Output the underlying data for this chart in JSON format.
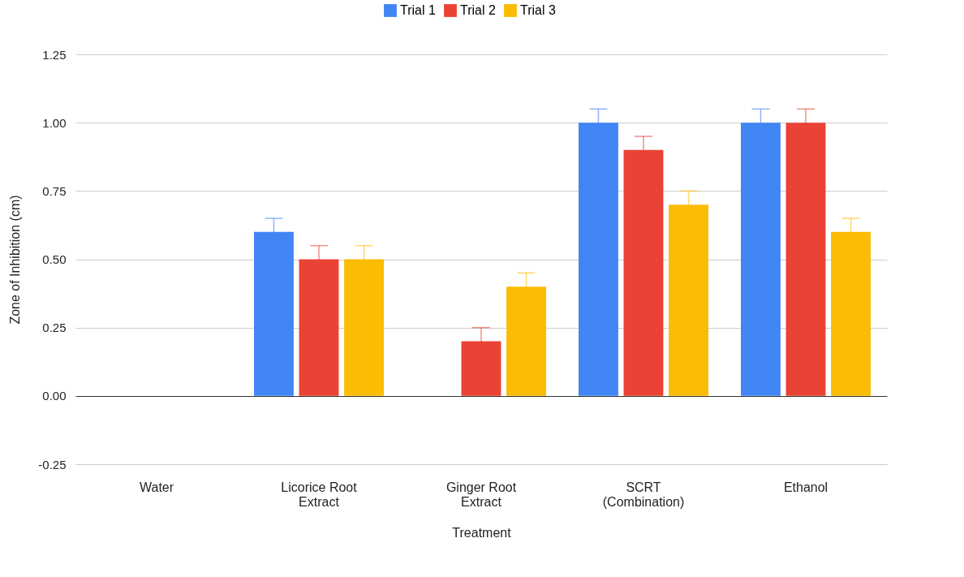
{
  "chart_data": {
    "type": "bar",
    "xlabel": "Treatment",
    "ylabel": "Zone of Inhibition (cm)",
    "categories": [
      "Water",
      "Licorice Root Extract",
      "Ginger Root Extract",
      "SCRT (Combination)",
      "Ethanol"
    ],
    "series": [
      {
        "name": "Trial 1",
        "color": "#4285f4",
        "values": [
          0,
          0.6,
          0,
          1.0,
          1.0
        ],
        "errors": [
          null,
          0.05,
          null,
          0.05,
          0.05
        ]
      },
      {
        "name": "Trial 2",
        "color": "#ea4335",
        "values": [
          0,
          0.5,
          0.2,
          0.9,
          1.0
        ],
        "errors": [
          null,
          0.05,
          0.05,
          0.05,
          0.05
        ]
      },
      {
        "name": "Trial 3",
        "color": "#fbbc04",
        "values": [
          0,
          0.5,
          0.4,
          0.7,
          0.6
        ],
        "errors": [
          null,
          0.05,
          0.05,
          0.05,
          0.05
        ]
      }
    ],
    "ylim": [
      -0.25,
      1.25
    ],
    "yticks": [
      {
        "value": -0.25,
        "label": "-0.25"
      },
      {
        "value": 0,
        "label": "0.00"
      },
      {
        "value": 0.25,
        "label": "0.25"
      },
      {
        "value": 0.5,
        "label": "0.50"
      },
      {
        "value": 0.75,
        "label": "0.75"
      },
      {
        "value": 1,
        "label": "1.00"
      },
      {
        "value": 1.25,
        "label": "1.25"
      }
    ],
    "grid": "y",
    "legend": "top"
  }
}
